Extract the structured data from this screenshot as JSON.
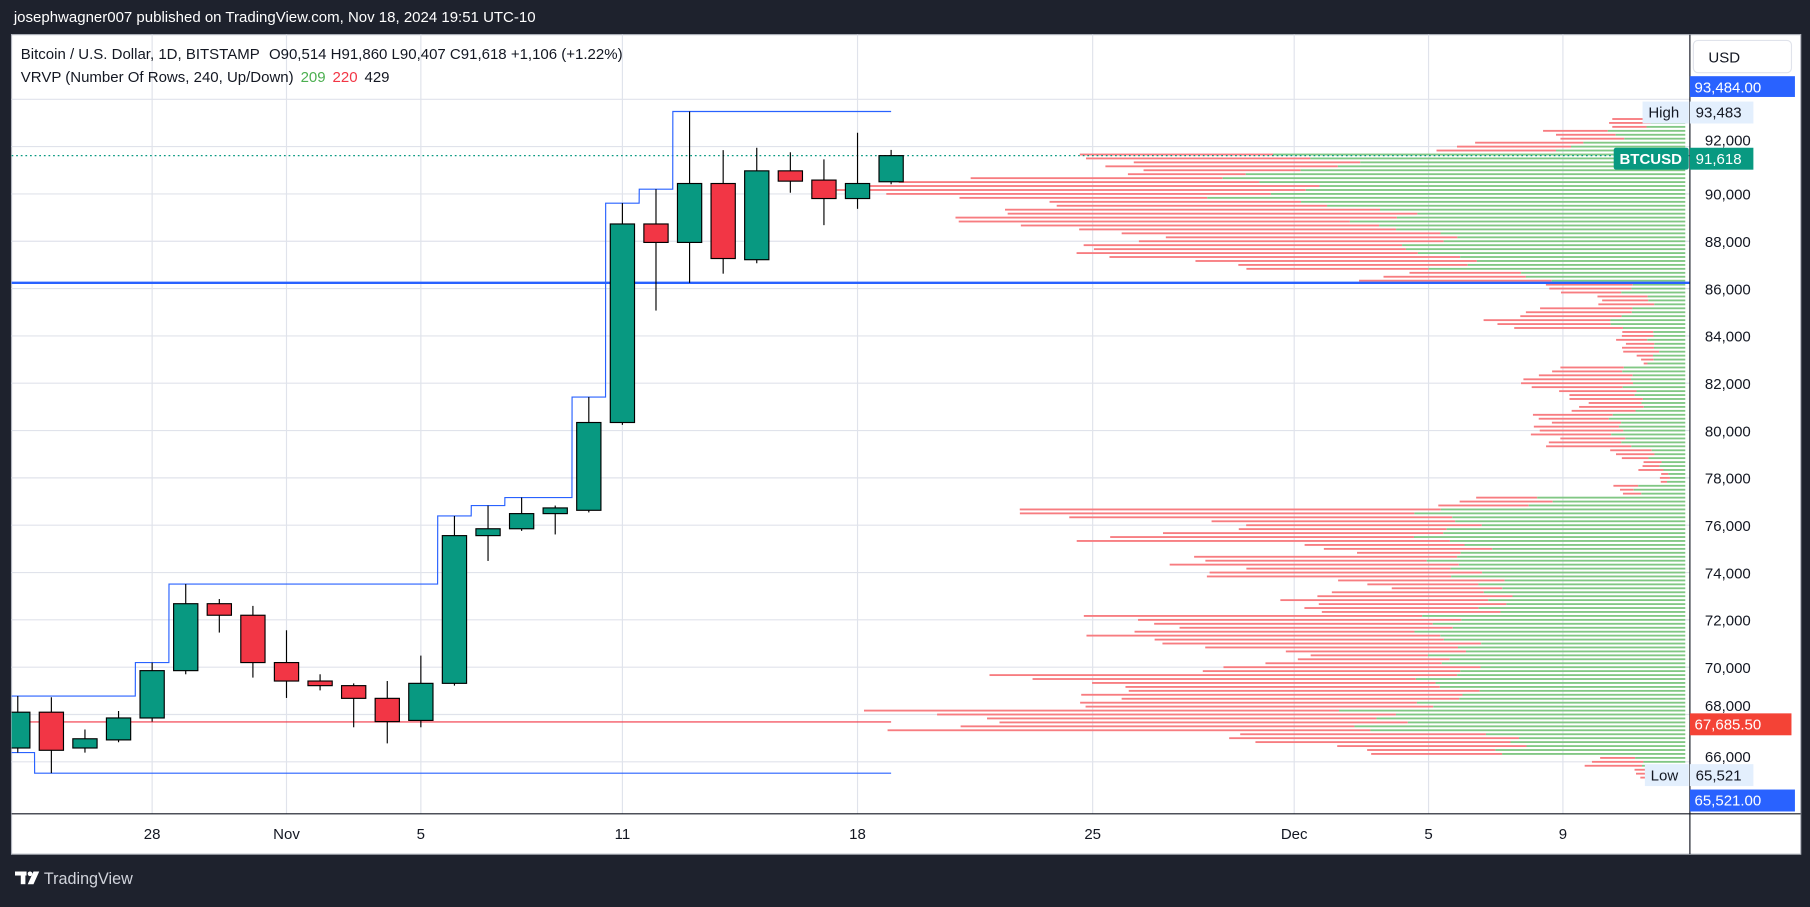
{
  "header": {
    "published": "josephwagner007 published on TradingView.com, Nov 18, 2024 19:51 UTC-10"
  },
  "legend": {
    "symbol": "Bitcoin / U.S. Dollar, 1D, BITSTAMP",
    "ohlc": "O90,514  H91,860  L90,407  C91,618  +1,106 (+1.22%)",
    "indicator": "VRVP (Number Of Rows, 240, Up/Down)",
    "up_count": "209",
    "down_count": "220",
    "total_count": "429"
  },
  "price_axis": {
    "currency": "USD",
    "range_high_badge": "93,484.00",
    "high_label": "High",
    "high_value": "93,483",
    "symbol_label": "BTCUSD",
    "last_price": "91,618",
    "poc_badge": "67,685.50",
    "low_label": "Low",
    "low_value": "65,521",
    "range_low_badge": "65,521.00"
  },
  "footer": {
    "brand": "TradingView"
  },
  "colors": {
    "up": "#089981",
    "down": "#f23645",
    "range_line": "#2962ff",
    "profile_up": "#81c784",
    "profile_down": "#f77c80",
    "poc": "#f23645",
    "badge_blue": "#2962ff",
    "badge_red": "#f44336",
    "badge_green": "#089981"
  },
  "chart_data": {
    "type": "candlestick",
    "symbol": "BTCUSD",
    "interval": "1D",
    "ylim": [
      64500,
      95000
    ],
    "grid": true,
    "y_ticks": [
      "92,000",
      "90,000",
      "88,000",
      "86,000",
      "84,000",
      "82,000",
      "80,000",
      "78,000",
      "76,000",
      "74,000",
      "72,000",
      "70,000",
      "68,000",
      "66,000"
    ],
    "y_tick_values": [
      92000,
      90000,
      88000,
      86000,
      84000,
      82000,
      80000,
      78000,
      76000,
      74000,
      72000,
      70000,
      68000,
      66000
    ],
    "x_ticks": [
      {
        "label": "28",
        "date": "2024-10-28"
      },
      {
        "label": "Nov",
        "date": "2024-11-01"
      },
      {
        "label": "5",
        "date": "2024-11-05"
      },
      {
        "label": "11",
        "date": "2024-11-11"
      },
      {
        "label": "18",
        "date": "2024-11-18"
      },
      {
        "label": "25",
        "date": "2024-11-25"
      },
      {
        "label": "Dec",
        "date": "2024-12-01"
      },
      {
        "label": "5",
        "date": "2024-12-05"
      },
      {
        "label": "9",
        "date": "2024-12-09"
      }
    ],
    "candles": [
      {
        "d": "2024-10-24",
        "o": 66585,
        "h": 68780,
        "l": 66390,
        "c": 68098
      },
      {
        "d": "2024-10-25",
        "o": 68098,
        "h": 68730,
        "l": 65521,
        "c": 66488
      },
      {
        "d": "2024-10-26",
        "o": 66585,
        "h": 67365,
        "l": 66390,
        "c": 66975
      },
      {
        "d": "2024-10-27",
        "o": 66927,
        "h": 68150,
        "l": 66830,
        "c": 67854
      },
      {
        "d": "2024-10-28",
        "o": 67854,
        "h": 70195,
        "l": 67700,
        "c": 69854
      },
      {
        "d": "2024-10-29",
        "o": 69854,
        "h": 73512,
        "l": 69700,
        "c": 72683
      },
      {
        "d": "2024-10-30",
        "o": 72683,
        "h": 72880,
        "l": 71463,
        "c": 72195
      },
      {
        "d": "2024-10-31",
        "o": 72195,
        "h": 72590,
        "l": 69560,
        "c": 70195
      },
      {
        "d": "2024-11-01",
        "o": 70195,
        "h": 71560,
        "l": 68700,
        "c": 69415
      },
      {
        "d": "2024-11-02",
        "o": 69415,
        "h": 69700,
        "l": 69020,
        "c": 69220
      },
      {
        "d": "2024-11-03",
        "o": 69220,
        "h": 69315,
        "l": 67460,
        "c": 68683
      },
      {
        "d": "2024-11-04",
        "o": 68683,
        "h": 69415,
        "l": 66780,
        "c": 67700
      },
      {
        "d": "2024-11-05",
        "o": 67750,
        "h": 70490,
        "l": 67460,
        "c": 69317
      },
      {
        "d": "2024-11-06",
        "o": 69317,
        "h": 76390,
        "l": 69220,
        "c": 75560
      },
      {
        "d": "2024-11-07",
        "o": 75560,
        "h": 76830,
        "l": 74490,
        "c": 75850
      },
      {
        "d": "2024-11-08",
        "o": 75850,
        "h": 77170,
        "l": 75760,
        "c": 76490
      },
      {
        "d": "2024-11-09",
        "o": 76490,
        "h": 76830,
        "l": 75610,
        "c": 76730
      },
      {
        "d": "2024-11-10",
        "o": 76630,
        "h": 81415,
        "l": 76540,
        "c": 80340
      },
      {
        "d": "2024-11-11",
        "o": 80340,
        "h": 89610,
        "l": 80240,
        "c": 88730
      },
      {
        "d": "2024-11-12",
        "o": 88730,
        "h": 90200,
        "l": 85070,
        "c": 87950
      },
      {
        "d": "2024-11-13",
        "o": 87950,
        "h": 93483,
        "l": 86240,
        "c": 90440
      },
      {
        "d": "2024-11-14",
        "o": 90440,
        "h": 91850,
        "l": 86630,
        "c": 87270
      },
      {
        "d": "2024-11-15",
        "o": 87220,
        "h": 91950,
        "l": 87070,
        "c": 90975
      },
      {
        "d": "2024-11-16",
        "o": 90975,
        "h": 91760,
        "l": 90050,
        "c": 90540
      },
      {
        "d": "2024-11-17",
        "o": 90585,
        "h": 91460,
        "l": 88680,
        "c": 89805
      },
      {
        "d": "2024-11-18",
        "o": 89805,
        "h": 92585,
        "l": 89370,
        "c": 90440
      },
      {
        "d": "2024-11-19",
        "o": 90514,
        "h": 91860,
        "l": 90407,
        "c": 91618
      }
    ],
    "horizontal_line": 86244,
    "range_high": 93484,
    "range_low": 65521,
    "poc": 67685.5,
    "last_price": 91618,
    "volume_profile": {
      "mode": "Up/Down",
      "rows_columns": [
        "price",
        "up",
        "down"
      ],
      "rows": [
        [
          93000,
          30,
          30
        ],
        [
          92500,
          60,
          60
        ],
        [
          92000,
          100,
          100
        ],
        [
          91500,
          320,
          160
        ],
        [
          91000,
          340,
          180
        ],
        [
          90500,
          360,
          290
        ],
        [
          90000,
          370,
          300
        ],
        [
          89500,
          300,
          300
        ],
        [
          89000,
          260,
          320
        ],
        [
          88500,
          240,
          300
        ],
        [
          88000,
          220,
          280
        ],
        [
          87500,
          220,
          260
        ],
        [
          87000,
          200,
          220
        ],
        [
          86500,
          130,
          130
        ],
        [
          86000,
          50,
          60
        ],
        [
          85500,
          30,
          50
        ],
        [
          85000,
          50,
          80
        ],
        [
          84500,
          60,
          100
        ],
        [
          84000,
          30,
          30
        ],
        [
          83500,
          25,
          25
        ],
        [
          83000,
          30,
          10
        ],
        [
          82500,
          50,
          70
        ],
        [
          82000,
          50,
          80
        ],
        [
          81500,
          40,
          70
        ],
        [
          81000,
          40,
          50
        ],
        [
          80500,
          60,
          60
        ],
        [
          80000,
          60,
          80
        ],
        [
          79500,
          50,
          60
        ],
        [
          79000,
          30,
          30
        ],
        [
          78500,
          20,
          20
        ],
        [
          78000,
          15,
          5
        ],
        [
          77500,
          40,
          20
        ],
        [
          77000,
          130,
          70
        ],
        [
          76500,
          210,
          320
        ],
        [
          76000,
          200,
          220
        ],
        [
          75500,
          210,
          270
        ],
        [
          75000,
          190,
          110
        ],
        [
          74500,
          200,
          260
        ],
        [
          74000,
          200,
          180
        ],
        [
          73500,
          160,
          120
        ],
        [
          73000,
          170,
          170
        ],
        [
          72500,
          160,
          140
        ],
        [
          72000,
          220,
          290
        ],
        [
          71500,
          210,
          270
        ],
        [
          71000,
          200,
          220
        ],
        [
          70500,
          200,
          160
        ],
        [
          70000,
          200,
          180
        ],
        [
          69500,
          210,
          340
        ],
        [
          69000,
          200,
          330
        ],
        [
          68500,
          210,
          270
        ],
        [
          68000,
          280,
          390
        ],
        [
          67500,
          260,
          400
        ],
        [
          67000,
          160,
          200
        ],
        [
          66500,
          150,
          150
        ],
        [
          66000,
          40,
          40
        ],
        [
          65500,
          20,
          20
        ]
      ]
    }
  }
}
